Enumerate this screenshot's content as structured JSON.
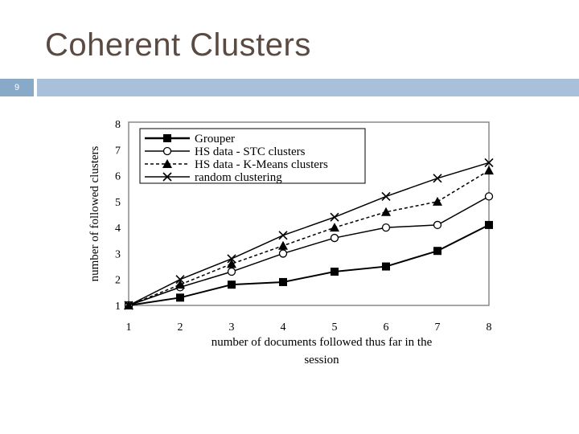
{
  "slide": {
    "title": "Coherent Clusters",
    "number": "9"
  },
  "colors": {
    "title_text": "#5a4a42",
    "bar": "#a8c0da",
    "number_box": "#89a9c8",
    "plot_border": "#888888",
    "mark": "#000000"
  },
  "chart_data": {
    "type": "line",
    "title": "",
    "xlabel": "number of documents followed thus far in the session",
    "ylabel": "number of followed clusters",
    "x": [
      1,
      2,
      3,
      4,
      5,
      6,
      7,
      8
    ],
    "xlim": [
      1,
      8
    ],
    "ylim": [
      1,
      8
    ],
    "yticks": [
      1,
      2,
      3,
      4,
      5,
      6,
      7,
      8
    ],
    "grid": false,
    "legend_position": "top-left",
    "series": [
      {
        "name": "Grouper",
        "marker": "square-filled",
        "line": "solid-thick",
        "values": [
          1,
          1.3,
          1.8,
          1.9,
          2.3,
          2.5,
          3.1,
          4.1
        ]
      },
      {
        "name": "HS data - STC clusters",
        "marker": "circle-open",
        "line": "solid",
        "values": [
          1,
          1.7,
          2.3,
          3.0,
          3.6,
          4.0,
          4.1,
          5.2
        ]
      },
      {
        "name": "HS data - K-Means clusters",
        "marker": "triangle-filled",
        "line": "dashed",
        "values": [
          1,
          1.8,
          2.6,
          3.3,
          4.0,
          4.6,
          5.0,
          6.2
        ]
      },
      {
        "name": "random clustering",
        "marker": "x",
        "line": "solid",
        "values": [
          1,
          2.0,
          2.8,
          3.7,
          4.4,
          5.2,
          5.9,
          6.5
        ]
      }
    ]
  }
}
